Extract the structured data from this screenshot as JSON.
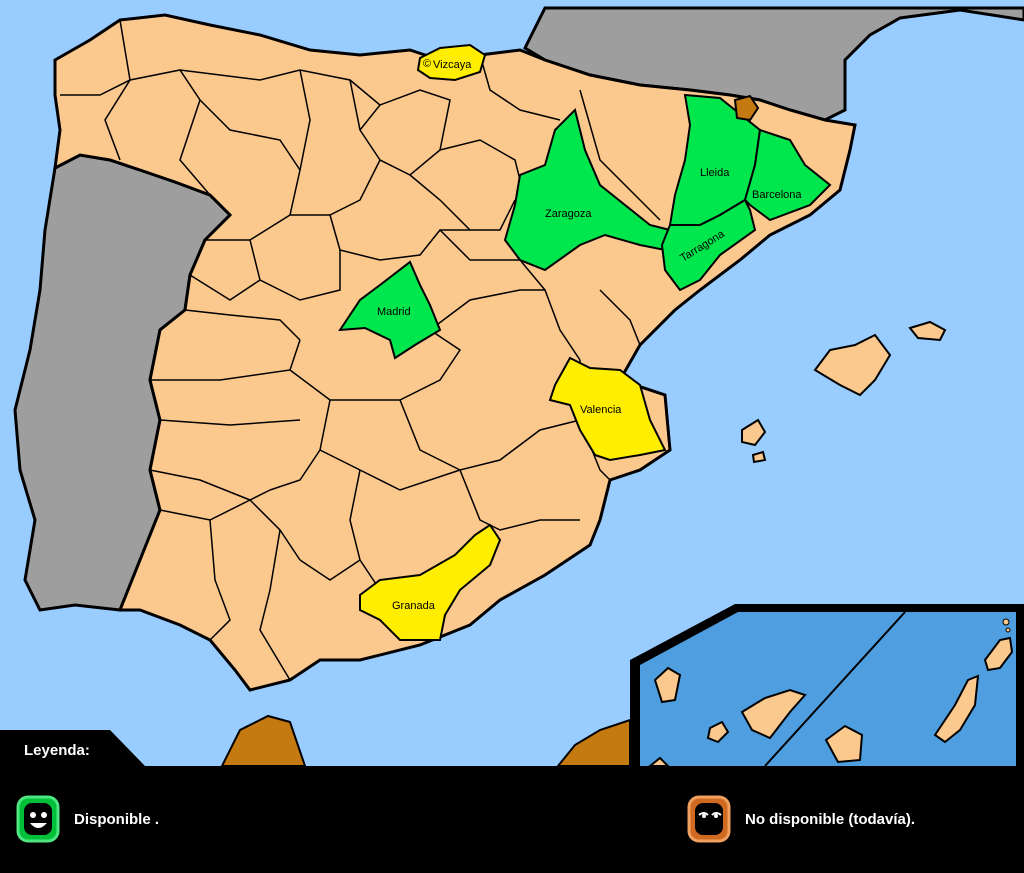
{
  "legend": {
    "title": "Leyenda:",
    "available_label": "Disponible .",
    "unavailable_label": "No disponible (todavía)."
  },
  "provinces": {
    "vizcaya": "Vizcaya",
    "zaragoza": "Zaragoza",
    "lleida": "Lleida",
    "barcelona": "Barcelona",
    "tarragona": "Tarragona",
    "madrid": "Madrid",
    "valencia": "Valencia",
    "granada": "Granada"
  },
  "colors": {
    "sea": "#99ccff",
    "land": "#fbc88d",
    "other_country": "#9e9e9e",
    "available_green": "#00e64d",
    "available_yellow": "#ffee00",
    "unavailable_brown": "#c47a10",
    "canary_sea": "#4f9fe0",
    "legend_bg": "#000000"
  },
  "copyright_mark": "©"
}
